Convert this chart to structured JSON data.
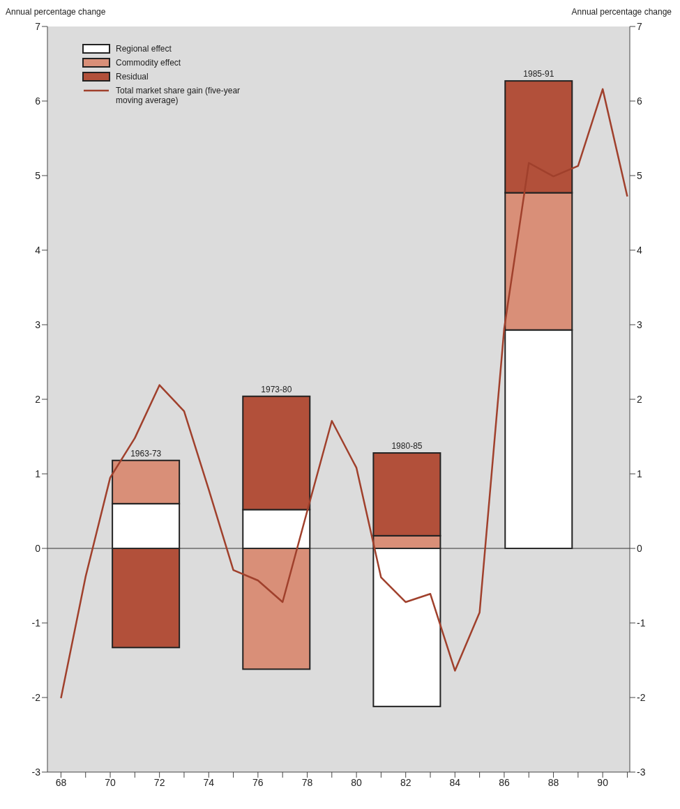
{
  "chart_data": {
    "type": "bar",
    "stacked": true,
    "ylabel": "Annual percentage change",
    "y2label": "Annual percentage change",
    "xlim": [
      67.45,
      91.1
    ],
    "xticks": [
      68,
      {
        "value": 69,
        "label": null
      },
      70,
      {
        "value": 71,
        "label": null
      },
      72,
      {
        "value": 73,
        "label": null
      },
      74,
      {
        "value": 75,
        "label": null
      },
      76,
      {
        "value": 77,
        "label": null
      },
      78,
      {
        "value": 79,
        "label": null
      },
      80,
      {
        "value": 81,
        "label": null
      },
      82,
      {
        "value": 83,
        "label": null
      },
      84,
      {
        "value": 85,
        "label": null
      },
      86,
      {
        "value": 87,
        "label": null
      },
      88,
      {
        "value": 89,
        "label": null
      },
      90,
      {
        "value": 91,
        "label": null
      }
    ],
    "ylim": [
      -3,
      7
    ],
    "yticks": [
      -3,
      -2,
      -1,
      0,
      1,
      2,
      3,
      4,
      5,
      6,
      7
    ],
    "y2lim": [
      -3,
      7
    ],
    "y2ticks": [
      -3,
      -2,
      -1,
      0,
      1,
      2,
      3,
      4,
      5,
      6,
      7
    ],
    "x": [
      71.45,
      76.75,
      82.05,
      87.4
    ],
    "series": [
      {
        "name": "Regional effect",
        "color": "#ffffff",
        "values": [
          0.6,
          0.52,
          -2.12,
          2.93
        ]
      },
      {
        "name": "Commodity effect",
        "color": "#d98f78",
        "values": [
          0.58,
          -1.62,
          0.17,
          1.84
        ]
      },
      {
        "name": "Residual",
        "color": "#b2503a",
        "values": [
          -1.33,
          1.52,
          1.11,
          1.5
        ]
      },
      {
        "name": "Total market share gain (five-year moving average)",
        "type": "line",
        "color": "#a0402c",
        "x": [
          68,
          69,
          70,
          71,
          72,
          73,
          74,
          75,
          76,
          77,
          78,
          79,
          80,
          81,
          82,
          83,
          84,
          85,
          86,
          87,
          88,
          89,
          90,
          91
        ],
        "values": [
          -2.01,
          -0.38,
          0.95,
          1.48,
          2.19,
          1.84,
          0.79,
          -0.29,
          -0.43,
          -0.72,
          0.5,
          1.71,
          1.08,
          -0.39,
          -0.72,
          -0.61,
          -1.64,
          -0.86,
          2.95,
          5.17,
          4.99,
          5.13,
          6.16,
          4.72
        ]
      }
    ],
    "annotations": [
      {
        "text": "1963-73",
        "x": 71.45,
        "y": 1.18
      },
      {
        "text": "1973-80",
        "x": 76.75,
        "y": 2.04
      },
      {
        "text": "1980-85",
        "x": 82.05,
        "y": 1.28
      },
      {
        "text": "1985-91",
        "x": 87.4,
        "y": 6.27
      }
    ],
    "ref_lines": [
      {
        "axis": "y",
        "value": 0,
        "color": "#333333"
      }
    ],
    "legend": "top left",
    "grid": false,
    "marker": "none",
    "line_style": "solid"
  }
}
